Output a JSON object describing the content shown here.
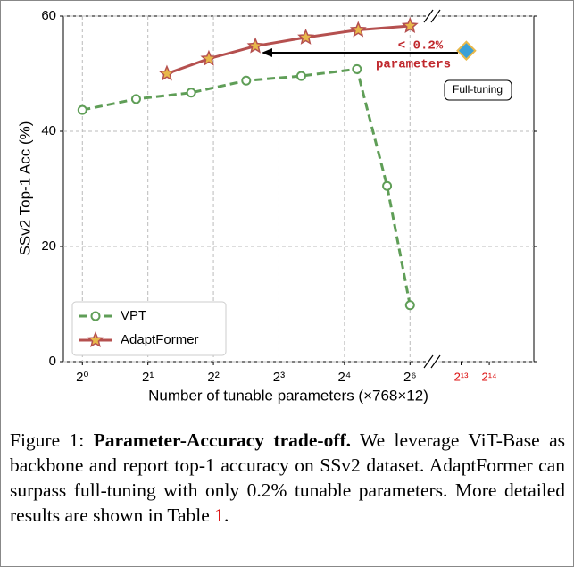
{
  "chart_data": {
    "type": "line",
    "xlabel": "Number of tunable parameters (×768×12)",
    "ylabel": "SSv2 Top-1 Acc (%)",
    "xlim": [
      -0.29,
      6.89
    ],
    "ylim": [
      0,
      60
    ],
    "xticks": [
      {
        "value": 0,
        "label": "2⁰"
      },
      {
        "value": 1,
        "label": "2¹"
      },
      {
        "value": 2,
        "label": "2²"
      },
      {
        "value": 3,
        "label": "2³"
      },
      {
        "value": 4,
        "label": "2⁴"
      },
      {
        "value": 5,
        "label": "2⁶"
      }
    ],
    "break_xticks": [
      {
        "value": 5.78,
        "label": "2¹³"
      },
      {
        "value": 6.21,
        "label": "2¹⁴"
      }
    ],
    "break_tick_color": "#d11",
    "yticks": [
      0,
      20,
      40,
      60
    ],
    "grid": true,
    "legend": "lower left",
    "series": [
      {
        "name": "VPT",
        "color": "#5f9e57",
        "marker": "circle",
        "dashed": true,
        "x": [
          0,
          0.82,
          1.66,
          2.5,
          3.34,
          4.19,
          4.65,
          5.0
        ],
        "values": [
          43.7,
          45.6,
          46.7,
          48.8,
          49.6,
          50.8,
          30.5,
          9.8
        ]
      },
      {
        "name": "AdaptFormer",
        "color": "#b5504f",
        "marker": "star",
        "dashed": false,
        "x": [
          1.29,
          1.93,
          2.64,
          3.41,
          4.21,
          5.0
        ],
        "values": [
          50.0,
          52.6,
          54.8,
          56.3,
          57.6,
          58.3
        ]
      }
    ],
    "full_tuning": {
      "name": "Full-tuning",
      "x": 5.86,
      "value": 54.0
    },
    "annotation": [
      "< 0.2%",
      "parameters"
    ]
  },
  "caption": {
    "label": "Figure 1:",
    "title": "Parameter-Accuracy trade-off.",
    "text": "We leverage ViT-Base as backbone and report top-1 accuracy on SSv2 dataset. AdaptFormer can surpass full-tuning with only 0.2% tunable parameters. More detailed results are shown in Table",
    "ref": "1",
    "end": "."
  }
}
